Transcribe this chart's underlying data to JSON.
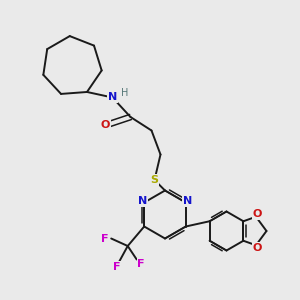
{
  "background_color": "#eaeaea",
  "atom_colors": {
    "C": "#1a1a1a",
    "N": "#1414cc",
    "O": "#cc1414",
    "S": "#aaaa00",
    "F": "#cc00cc",
    "H": "#557777"
  },
  "figsize": [
    3.0,
    3.0
  ],
  "dpi": 100
}
